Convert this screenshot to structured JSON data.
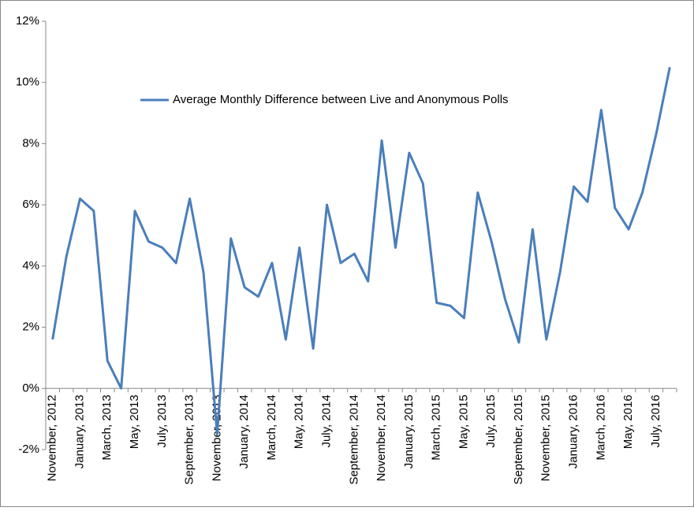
{
  "chart_data": {
    "type": "line",
    "categories": [
      "November, 2012",
      null,
      "January, 2013",
      null,
      "March, 2013",
      null,
      "May, 2013",
      null,
      "July, 2013",
      null,
      "September, 2013",
      null,
      "November, 2013",
      null,
      "January, 2014",
      null,
      "March, 2014",
      null,
      "May, 2014",
      null,
      "July, 2014",
      null,
      "September, 2014",
      null,
      "November, 2014",
      null,
      "January, 2015",
      null,
      "March, 2015",
      null,
      "May, 2015",
      null,
      "July, 2015",
      null,
      "September, 2015",
      null,
      "November, 2015",
      null,
      "January, 2016",
      null,
      "March, 2016",
      null,
      "May, 2016",
      null,
      "July, 2016",
      null
    ],
    "series": [
      {
        "name": "Average Monthly Difference between Live and Anonymous Polls",
        "color": "#4a7ebb",
        "values": [
          1.6,
          4.3,
          6.2,
          5.8,
          0.9,
          0.0,
          5.8,
          4.8,
          4.6,
          4.1,
          6.2,
          3.8,
          -1.5,
          4.9,
          3.3,
          3.0,
          4.1,
          1.6,
          4.6,
          1.3,
          6.0,
          4.1,
          4.4,
          3.5,
          8.1,
          4.6,
          7.7,
          6.7,
          2.8,
          2.7,
          2.3,
          6.4,
          4.8,
          2.9,
          1.5,
          5.2,
          1.6,
          3.8,
          6.6,
          6.1,
          9.1,
          5.9,
          5.2,
          6.4,
          8.3,
          10.5
        ]
      }
    ],
    "ylim": [
      -2,
      12
    ],
    "yticks": [
      {
        "value": -2,
        "label": "-2%"
      },
      {
        "value": 0,
        "label": "0%"
      },
      {
        "value": 2,
        "label": "2%"
      },
      {
        "value": 4,
        "label": "4%"
      },
      {
        "value": 6,
        "label": "6%"
      },
      {
        "value": 8,
        "label": "8%"
      },
      {
        "value": 10,
        "label": "10%"
      },
      {
        "value": 12,
        "label": "12%"
      }
    ],
    "legend": "top"
  }
}
